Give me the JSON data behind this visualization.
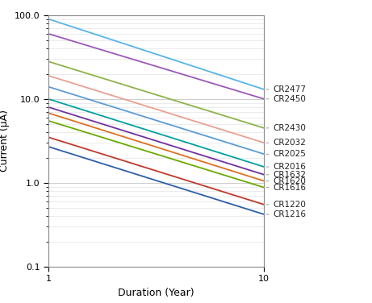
{
  "title": "",
  "xlabel": "Duration (Year)",
  "ylabel": "Current (μA)",
  "xlim": [
    1,
    10
  ],
  "ylim": [
    0.1,
    100.0
  ],
  "background_color": "#ffffff",
  "grid_major_color": "#cccccc",
  "grid_minor_color": "#dddddd",
  "series": [
    {
      "label": "CR2477",
      "color": "#56b4e9",
      "y_at_1": 90,
      "y_at_10": 13.0
    },
    {
      "label": "CR2450",
      "color": "#9b59b6",
      "y_at_1": 60,
      "y_at_10": 10.0
    },
    {
      "label": "CR2430",
      "color": "#8db34a",
      "y_at_1": 28,
      "y_at_10": 4.5
    },
    {
      "label": "CR2032",
      "color": "#e8a090",
      "y_at_1": 19,
      "y_at_10": 3.0
    },
    {
      "label": "CR2025",
      "color": "#5b9bd5",
      "y_at_1": 14,
      "y_at_10": 2.2
    },
    {
      "label": "CR2016",
      "color": "#00a0a0",
      "y_at_1": 10,
      "y_at_10": 1.55
    },
    {
      "label": "CR1632",
      "color": "#7030a0",
      "y_at_1": 8.0,
      "y_at_10": 1.25
    },
    {
      "label": "CR1620",
      "color": "#e07020",
      "y_at_1": 6.8,
      "y_at_10": 1.05
    },
    {
      "label": "CR1616",
      "color": "#6aaa00",
      "y_at_1": 5.5,
      "y_at_10": 0.88
    },
    {
      "label": "CR1220",
      "color": "#c0392b",
      "y_at_1": 3.5,
      "y_at_10": 0.55
    },
    {
      "label": "CR1216",
      "color": "#2c5fa8",
      "y_at_1": 2.7,
      "y_at_10": 0.42
    }
  ],
  "label_fontsize": 7.5,
  "axis_label_fontsize": 9,
  "tick_fontsize": 8,
  "linewidth": 1.3
}
